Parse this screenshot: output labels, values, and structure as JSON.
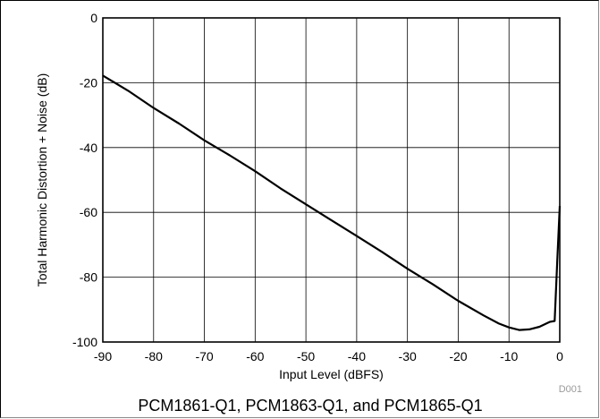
{
  "chart_data": {
    "type": "line",
    "title": "",
    "xlabel": "Input Level (dBFS)",
    "ylabel": "Total Harmonic Distortion + Noise (dB)",
    "xlim": [
      -90,
      0
    ],
    "ylim": [
      -100,
      0
    ],
    "xticks": [
      -90,
      -80,
      -70,
      -60,
      -50,
      -40,
      -30,
      -20,
      -10,
      0
    ],
    "yticks": [
      0,
      -20,
      -40,
      -60,
      -80,
      -100
    ],
    "grid": true,
    "legend": "none",
    "series": [
      {
        "color": "#000000",
        "x": [
          -90,
          -85,
          -80,
          -75,
          -70,
          -65,
          -60,
          -55,
          -50,
          -45,
          -40,
          -35,
          -30,
          -25,
          -20,
          -15,
          -12,
          -10,
          -8,
          -6,
          -4,
          -2,
          -1,
          -0.5,
          0
        ],
        "y": [
          -17.8,
          -22.5,
          -27.8,
          -32.6,
          -37.8,
          -42.4,
          -47.3,
          -52.6,
          -57.5,
          -62.4,
          -67.3,
          -72.2,
          -77.4,
          -82.2,
          -87.3,
          -91.8,
          -94.3,
          -95.5,
          -96.3,
          -96.1,
          -95.3,
          -93.8,
          -93.5,
          -75,
          -58
        ]
      }
    ]
  },
  "figure": {
    "caption": "PCM1861-Q1, PCM1863-Q1, and PCM1865-Q1",
    "tag": "D001"
  }
}
